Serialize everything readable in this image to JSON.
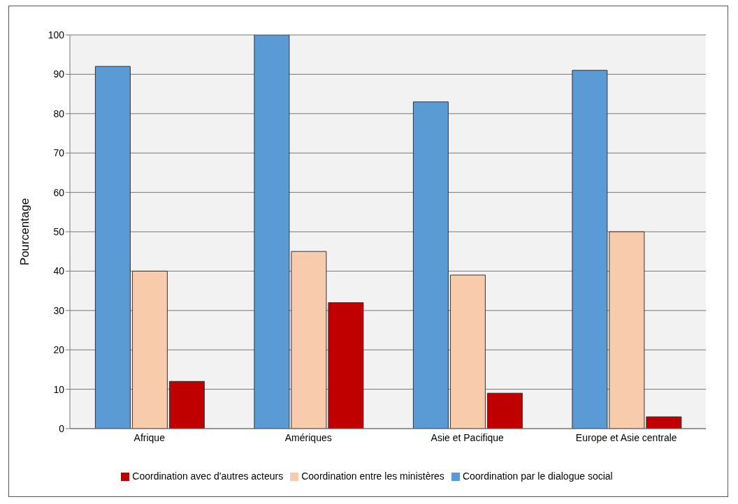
{
  "chart_data": {
    "type": "bar",
    "ylabel": "Pourcentage",
    "categories": [
      "Afrique",
      "Amériques",
      "Asie et Pacifique",
      "Europe et Asie centrale"
    ],
    "series": [
      {
        "name": "Coordination par le dialogue social",
        "color": "#5b9bd5",
        "values": [
          92,
          100,
          83,
          91
        ]
      },
      {
        "name": "Coordination entre les ministères",
        "color": "#f8cbad",
        "values": [
          40,
          45,
          39,
          50
        ]
      },
      {
        "name": "Coordination  avec d'autres  acteurs",
        "color": "#c00000",
        "values": [
          12,
          32,
          9,
          3
        ]
      }
    ],
    "ylim": [
      0,
      100
    ],
    "yticks": [
      0,
      10,
      20,
      30,
      40,
      50,
      60,
      70,
      80,
      90,
      100
    ],
    "grid": "y",
    "legend": "bottom"
  }
}
